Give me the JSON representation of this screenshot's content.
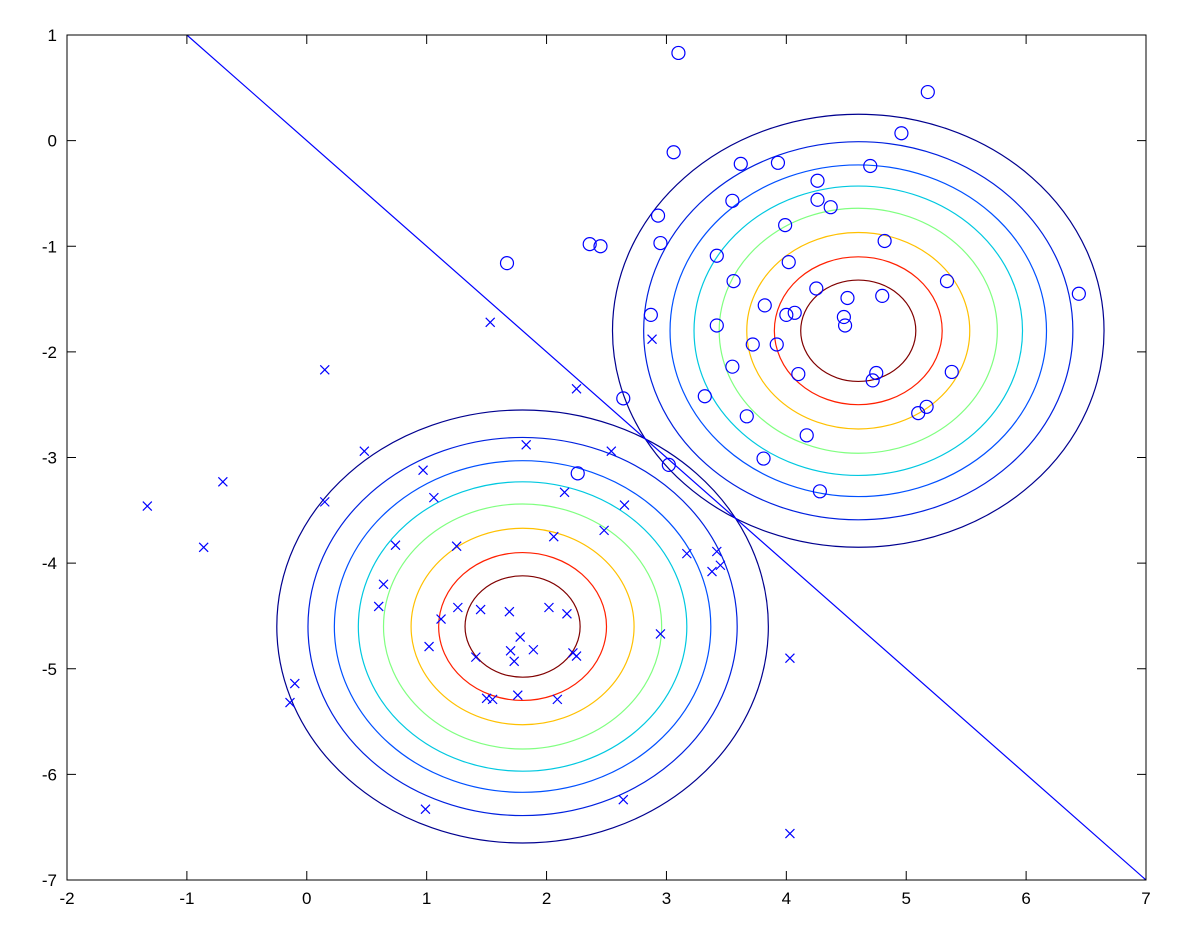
{
  "chart_data": {
    "type": "scatter",
    "xlim": [
      -2,
      7
    ],
    "ylim": [
      -7,
      1
    ],
    "xticks": [
      -2,
      -1,
      0,
      1,
      2,
      3,
      4,
      5,
      6,
      7
    ],
    "yticks": [
      -7,
      -6,
      -5,
      -4,
      -3,
      -2,
      -1,
      0,
      1
    ],
    "series": [
      {
        "marker": "x",
        "color": "#0000ff",
        "x": [
          1.53,
          0.15,
          2.88,
          2.25,
          -1.33,
          -0.86,
          -0.7,
          0.48,
          0.15,
          1.83,
          2.54,
          0.97,
          1.06,
          2.15,
          2.65,
          0.74,
          1.25,
          2.06,
          2.48,
          3.17,
          3.42,
          3.38,
          3.45,
          0.64,
          0.6,
          1.12,
          1.26,
          1.45,
          1.69,
          2.02,
          2.17,
          1.02,
          1.78,
          1.89,
          1.7,
          1.73,
          2.22,
          2.25,
          1.41,
          2.95,
          -0.1,
          -0.14,
          1.5,
          1.55,
          1.76,
          2.09,
          0.99,
          2.64,
          4.03,
          4.03
        ],
        "y": [
          -1.72,
          -2.17,
          -1.88,
          -2.35,
          -3.46,
          -3.85,
          -3.23,
          -2.94,
          -3.42,
          -2.88,
          -2.94,
          -3.12,
          -3.38,
          -3.33,
          -3.45,
          -3.83,
          -3.84,
          -3.75,
          -3.69,
          -3.91,
          -3.89,
          -4.08,
          -4.02,
          -4.2,
          -4.41,
          -4.53,
          -4.42,
          -4.44,
          -4.46,
          -4.42,
          -4.48,
          -4.79,
          -4.7,
          -4.82,
          -4.83,
          -4.93,
          -4.85,
          -4.88,
          -4.89,
          -4.67,
          -5.14,
          -5.32,
          -5.28,
          -5.29,
          -5.25,
          -5.29,
          -6.33,
          -6.24,
          -4.9,
          -6.56
        ]
      },
      {
        "marker": "o",
        "color": "#0000ff",
        "x": [
          3.1,
          5.18,
          4.96,
          3.06,
          3.62,
          3.93,
          4.7,
          4.26,
          3.55,
          4.26,
          4.37,
          2.93,
          3.99,
          2.36,
          2.45,
          2.95,
          4.82,
          1.67,
          3.42,
          4.02,
          3.56,
          5.34,
          4.25,
          4.51,
          4.8,
          6.44,
          2.87,
          3.82,
          4.0,
          4.07,
          4.48,
          4.49,
          3.42,
          3.72,
          3.92,
          3.55,
          4.1,
          4.75,
          4.72,
          5.38,
          2.64,
          3.32,
          3.67,
          5.1,
          5.17,
          4.17,
          3.81,
          3.02,
          2.26,
          4.28
        ],
        "y": [
          0.83,
          0.46,
          0.07,
          -0.11,
          -0.22,
          -0.21,
          -0.24,
          -0.38,
          -0.57,
          -0.56,
          -0.63,
          -0.71,
          -0.8,
          -0.98,
          -1.0,
          -0.97,
          -0.95,
          -1.16,
          -1.09,
          -1.15,
          -1.33,
          -1.33,
          -1.4,
          -1.49,
          -1.47,
          -1.45,
          -1.65,
          -1.56,
          -1.65,
          -1.63,
          -1.67,
          -1.75,
          -1.75,
          -1.93,
          -1.93,
          -2.14,
          -2.21,
          -2.2,
          -2.27,
          -2.19,
          -2.44,
          -2.42,
          -2.61,
          -2.58,
          -2.52,
          -2.79,
          -3.01,
          -3.07,
          -3.15,
          -3.32
        ]
      }
    ],
    "contours": [
      {
        "cx": 1.8,
        "cy": -4.6,
        "radii": [
          2.05,
          1.79,
          1.57,
          1.37,
          1.16,
          0.93,
          0.7,
          0.48
        ]
      },
      {
        "cx": 4.6,
        "cy": -1.8,
        "radii": [
          2.05,
          1.79,
          1.57,
          1.37,
          1.16,
          0.93,
          0.7,
          0.48
        ]
      }
    ],
    "contour_colors": [
      "#00008f",
      "#0020df",
      "#0050ff",
      "#00c8e0",
      "#80ff80",
      "#ffc000",
      "#ff2000",
      "#800000"
    ],
    "line": {
      "color": "#0000ff",
      "x": [
        -1,
        7
      ],
      "y": [
        1,
        -7
      ]
    }
  }
}
